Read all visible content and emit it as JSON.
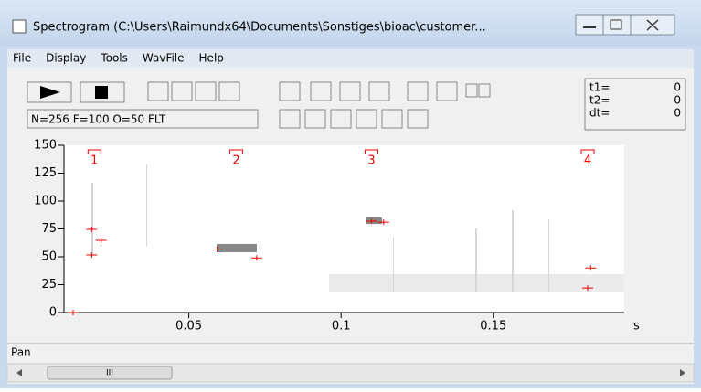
{
  "window": {
    "title": "Spectrogram (C:\\Users\\Raimundx64\\Documents\\Sonstiges\\bioac\\customer..."
  },
  "menu": [
    "File",
    "Display",
    "Tools",
    "WavFile",
    "Help"
  ],
  "settings_label": "N=256 F=100 O=50 FLT",
  "readout": {
    "labels": [
      "t1=",
      "t2=",
      "dt="
    ],
    "values": [
      0,
      0,
      0
    ]
  },
  "plot": {
    "ylim": [
      0,
      150
    ],
    "yticks": [
      0,
      25,
      50,
      75,
      100,
      125,
      150
    ],
    "xlim": [
      0.009,
      0.193
    ],
    "xticks": [
      0.05,
      0.1,
      0.15
    ],
    "x_unit": "s",
    "markers": [
      {
        "label": "1",
        "x": 0.019
      },
      {
        "label": "2",
        "x": 0.0656
      },
      {
        "label": "3",
        "x": 0.11
      },
      {
        "label": "4",
        "x": 0.181
      }
    ],
    "points": {
      "x": [
        0.0181,
        0.0212,
        0.0181,
        0.012,
        0.0594,
        0.0723,
        0.11,
        0.114,
        0.182,
        0.181
      ],
      "y": [
        51.6,
        64.8,
        74.6,
        0,
        57,
        49,
        82,
        81,
        40,
        22
      ]
    }
  },
  "status": "Pan",
  "scrollbar_thumb": "III"
}
